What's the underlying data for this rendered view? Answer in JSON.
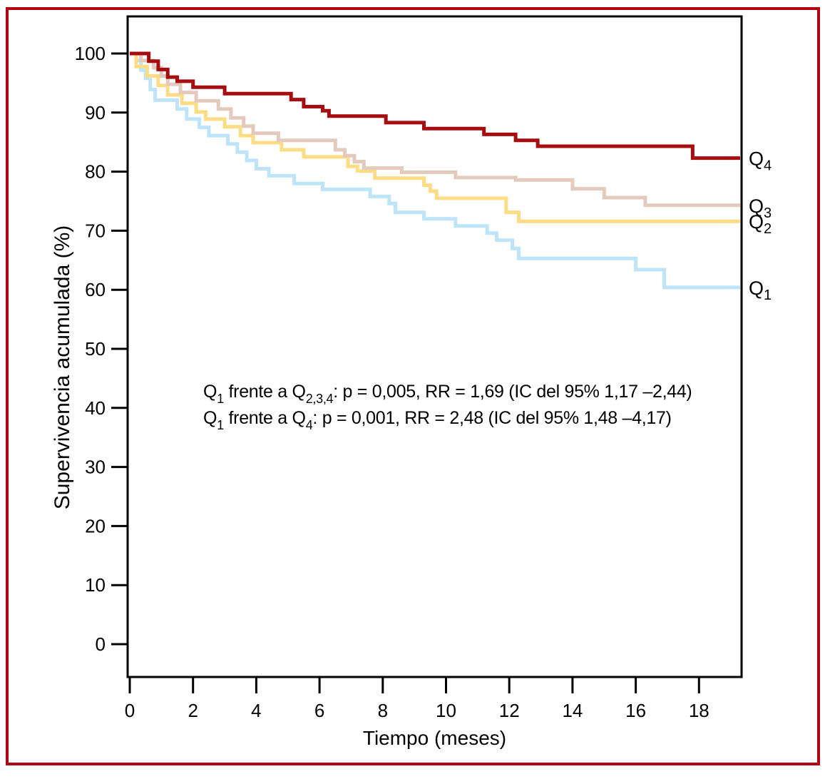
{
  "figure": {
    "background": "#ffffff",
    "border_color": "#AE0414",
    "axis_color": "#000000"
  },
  "chart_data": {
    "type": "line",
    "subtype": "kaplan-meier-step",
    "title": "",
    "xlabel": "Tiempo (meses)",
    "ylabel": "Supervivencia acumulada (%)",
    "xlim": [
      0,
      19.3
    ],
    "ylim": [
      0,
      100
    ],
    "x_ticks": [
      0,
      2,
      4,
      6,
      8,
      10,
      12,
      14,
      16,
      18
    ],
    "y_ticks": [
      0,
      10,
      20,
      30,
      40,
      50,
      60,
      70,
      80,
      90,
      100
    ],
    "grid": false,
    "legend_position": "labels-at-curve-end-right",
    "series": [
      {
        "name": "Q1",
        "label_parts": [
          {
            "text": "Q"
          },
          {
            "text": "1",
            "sub": true
          }
        ],
        "color": "#BEE4FA",
        "points": [
          [
            0,
            100
          ],
          [
            0.2,
            98.8
          ],
          [
            0.35,
            97.2
          ],
          [
            0.5,
            95.8
          ],
          [
            0.65,
            93.9
          ],
          [
            0.8,
            92.1
          ],
          [
            1.5,
            90.6
          ],
          [
            1.8,
            88.9
          ],
          [
            2.2,
            87.5
          ],
          [
            2.5,
            86.1
          ],
          [
            3.1,
            84.7
          ],
          [
            3.4,
            83.3
          ],
          [
            3.7,
            81.9
          ],
          [
            4.0,
            80.5
          ],
          [
            4.4,
            79.3
          ],
          [
            5.2,
            78.0
          ],
          [
            6.1,
            77.0
          ],
          [
            7.6,
            75.8
          ],
          [
            8.2,
            74.6
          ],
          [
            8.4,
            73.1
          ],
          [
            9.3,
            72.0
          ],
          [
            10.3,
            70.8
          ],
          [
            11.3,
            69.6
          ],
          [
            11.6,
            68.4
          ],
          [
            12.1,
            67.0
          ],
          [
            12.3,
            65.3
          ],
          [
            16.0,
            63.4
          ],
          [
            16.9,
            60.4
          ]
        ]
      },
      {
        "name": "Q2",
        "label_parts": [
          {
            "text": "Q"
          },
          {
            "text": "2",
            "sub": true
          }
        ],
        "color": "#FCDC84",
        "points": [
          [
            0,
            100
          ],
          [
            0.2,
            97.8
          ],
          [
            0.55,
            96.2
          ],
          [
            0.9,
            94.6
          ],
          [
            1.2,
            93.0
          ],
          [
            1.65,
            91.6
          ],
          [
            2.1,
            90.1
          ],
          [
            2.4,
            88.9
          ],
          [
            3.0,
            87.6
          ],
          [
            3.5,
            86.1
          ],
          [
            3.9,
            84.9
          ],
          [
            4.8,
            83.7
          ],
          [
            5.5,
            82.5
          ],
          [
            6.9,
            80.9
          ],
          [
            7.2,
            80.1
          ],
          [
            7.75,
            78.9
          ],
          [
            9.3,
            77.7
          ],
          [
            9.5,
            76.7
          ],
          [
            9.7,
            75.5
          ],
          [
            11.9,
            73.1
          ],
          [
            12.3,
            71.6
          ]
        ]
      },
      {
        "name": "Q3",
        "label_parts": [
          {
            "text": "Q"
          },
          {
            "text": "3",
            "sub": true
          }
        ],
        "color": "#E3CABD",
        "points": [
          [
            0,
            100
          ],
          [
            0.35,
            98.8
          ],
          [
            0.75,
            97.6
          ],
          [
            1.0,
            96.2
          ],
          [
            1.2,
            94.8
          ],
          [
            1.6,
            93.4
          ],
          [
            2.1,
            92.0
          ],
          [
            2.8,
            90.6
          ],
          [
            3.2,
            89.1
          ],
          [
            3.6,
            87.7
          ],
          [
            3.9,
            86.5
          ],
          [
            4.7,
            85.3
          ],
          [
            6.5,
            83.7
          ],
          [
            6.8,
            82.7
          ],
          [
            7.1,
            81.7
          ],
          [
            7.4,
            80.6
          ],
          [
            8.6,
            79.9
          ],
          [
            10.3,
            79.0
          ],
          [
            12.2,
            78.6
          ],
          [
            14.0,
            77.1
          ],
          [
            15.0,
            75.6
          ],
          [
            16.3,
            74.3
          ]
        ]
      },
      {
        "name": "Q4",
        "label_parts": [
          {
            "text": "Q"
          },
          {
            "text": "4",
            "sub": true
          }
        ],
        "color": "#A60D11",
        "points": [
          [
            0,
            100
          ],
          [
            0.6,
            98.7
          ],
          [
            0.9,
            97.3
          ],
          [
            1.2,
            96.0
          ],
          [
            1.5,
            95.3
          ],
          [
            2.0,
            94.3
          ],
          [
            3.0,
            93.2
          ],
          [
            5.1,
            92.2
          ],
          [
            5.5,
            91.0
          ],
          [
            6.1,
            90.3
          ],
          [
            6.3,
            89.4
          ],
          [
            8.1,
            88.3
          ],
          [
            9.3,
            87.3
          ],
          [
            11.2,
            86.3
          ],
          [
            12.2,
            85.3
          ],
          [
            12.9,
            84.3
          ],
          [
            17.8,
            82.3
          ]
        ]
      }
    ],
    "annotations": [
      {
        "parts": [
          {
            "text": "Q"
          },
          {
            "text": "1",
            "sub": true
          },
          {
            "text": " frente a Q"
          },
          {
            "text": "2,3,4",
            "sub": true
          },
          {
            "text": ": p = 0,005, RR = 1,69 (IC del 95% 1,17 –2,44)"
          }
        ]
      },
      {
        "parts": [
          {
            "text": "Q"
          },
          {
            "text": "1",
            "sub": true
          },
          {
            "text": " frente a Q"
          },
          {
            "text": "4",
            "sub": true
          },
          {
            "text": ": p = 0,001, RR = 2,48 (IC del 95% 1,48 –4,17)"
          }
        ]
      }
    ]
  }
}
